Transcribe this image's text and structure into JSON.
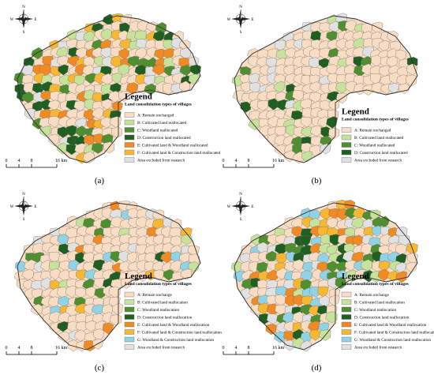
{
  "compass": {
    "n": "N",
    "e": "E",
    "s": "S",
    "w": "W"
  },
  "scale": [
    "0",
    "4",
    "8",
    "16 km"
  ],
  "panels": [
    {
      "label": "(a)",
      "legend": {
        "title": "Legend",
        "subtitle": "Land consolidation types of villages",
        "items": [
          {
            "label": "A: Remain unchanged",
            "color": "#f8dcc3"
          },
          {
            "label": "B: Cultivated land reallocated",
            "color": "#c6e29b"
          },
          {
            "label": "C: Woodland reallocated",
            "color": "#4f8f2f"
          },
          {
            "label": "D: Construction land reallocated",
            "color": "#1f5f22"
          },
          {
            "label": "E: Cultivated land & Woodland reallocated",
            "color": "#f08a24"
          },
          {
            "label": "F: Cultivated land & Construction land reallocated",
            "color": "#f7b733"
          },
          {
            "label": "Area excluded from research",
            "color": "#e1e1e1"
          }
        ]
      }
    },
    {
      "label": "(b)",
      "legend": {
        "title": "Legend",
        "subtitle": "Land consolidation types of villages",
        "items": [
          {
            "label": "A: Remain unchanged",
            "color": "#f8dcc3"
          },
          {
            "label": "B: Cultivated land reallocated",
            "color": "#c6e29b"
          },
          {
            "label": "C: Woodland reallocated",
            "color": "#4f8f2f"
          },
          {
            "label": "D: Construction land reallocated",
            "color": "#1f5f22"
          },
          {
            "label": "Area excluded from research",
            "color": "#e1e1e1"
          }
        ]
      }
    },
    {
      "label": "(c)",
      "legend": {
        "title": "Legend",
        "subtitle": "Land consolidation types of villages",
        "items": [
          {
            "label": "A: Remain unchange",
            "color": "#f8dcc3"
          },
          {
            "label": "B: Cultivated land reallocation",
            "color": "#c6e29b"
          },
          {
            "label": "C: Woodland reallocation",
            "color": "#4f8f2f"
          },
          {
            "label": "D: Construction land reallocation",
            "color": "#1f5f22"
          },
          {
            "label": "E: Cultivated land & Woodland reallocation",
            "color": "#f08a24"
          },
          {
            "label": "F: Cultivated land & Construction land reallocation",
            "color": "#f7b733"
          },
          {
            "label": "G: Woodland & Construction land reallocation",
            "color": "#91d3e6"
          },
          {
            "label": "Area excluded from research",
            "color": "#e1e1e1"
          }
        ]
      }
    },
    {
      "label": "(d)",
      "legend": {
        "title": "Legend",
        "subtitle": "Land consolidation types of villages",
        "items": [
          {
            "label": "A: Remain unchange",
            "color": "#f8dcc3"
          },
          {
            "label": "B: Cultivated land reallocation",
            "color": "#c6e29b"
          },
          {
            "label": "C: Woodland reallocation",
            "color": "#4f8f2f"
          },
          {
            "label": "D: Construction land reallocation",
            "color": "#1f5f22"
          },
          {
            "label": "E: Cultivated land & Woodland reallocation",
            "color": "#f08a24"
          },
          {
            "label": "F: Cultivated land & Construction land reallocation",
            "color": "#f7b733"
          },
          {
            "label": "G: Woodland & Construction land reallocation",
            "color": "#91d3e6"
          },
          {
            "label": "Area excluded from research",
            "color": "#e1e1e1"
          }
        ]
      }
    }
  ]
}
